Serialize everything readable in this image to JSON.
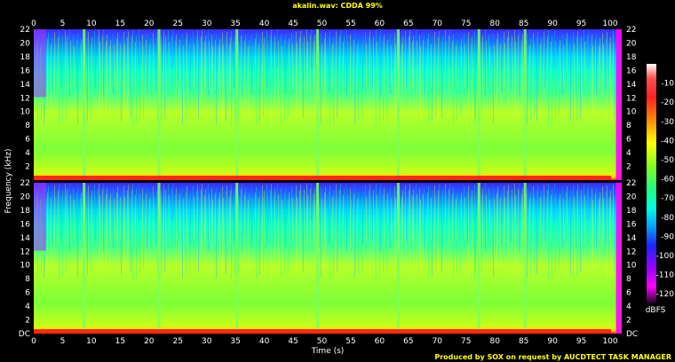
{
  "title": "akalin.wav: CDDA 99%",
  "credit": "Produced by SOX on request by AUCDTECT TASK MANAGER",
  "chart_data": {
    "type": "heatmap",
    "title": "akalin.wav: CDDA 99%",
    "xlabel": "Time (s)",
    "ylabel": "Frequency (kHz)",
    "xlim": [
      0,
      102
    ],
    "ylim_khz": [
      0,
      22
    ],
    "x_ticks": [
      0,
      5,
      10,
      15,
      20,
      25,
      30,
      35,
      40,
      45,
      50,
      55,
      60,
      65,
      70,
      75,
      80,
      85,
      90,
      95,
      100
    ],
    "y_ticks": [
      2,
      4,
      6,
      8,
      10,
      12,
      14,
      16,
      18,
      20,
      22
    ],
    "y_ticks_bottom": [
      "DC",
      2,
      4,
      6,
      8,
      10,
      12,
      14,
      16,
      18,
      20,
      22
    ],
    "channels": 2,
    "colorbar": {
      "label": "dBFS",
      "ticks": [
        -10,
        -20,
        -30,
        -40,
        -50,
        -60,
        -70,
        -80,
        -90,
        -100,
        -110,
        -120
      ],
      "range": [
        0,
        -125
      ]
    },
    "dominant_band": "6 to 14 kHz yellow-green (about -40 to -50 dBFS); above 14 kHz cyan/blue (about -60 to -80 dBFS); strong red near DC",
    "transient_times_s": [
      8.5,
      21.5,
      35,
      49,
      63,
      77,
      85
    ]
  }
}
